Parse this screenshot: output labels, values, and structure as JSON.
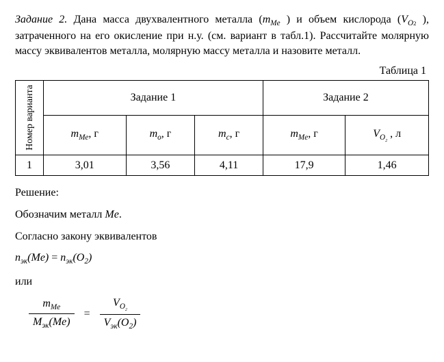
{
  "problem": {
    "label_italic": "Задание 2.",
    "text_line1a": " Дана масса двухвалентного металла (",
    "sym_mMe": "m",
    "sym_Me": "Me",
    "text_line1b": " ) и объем кислорода (",
    "sym_V": "V",
    "sym_O2": "O",
    "sym_2": "2",
    "text_line1c": " ), затраченного на его окисление при н.у. (см. вариант в табл.1). Рассчитайте молярную массу эквивалентов металла, молярную массу металла и назовите металл."
  },
  "tableCaption": "Таблица 1",
  "table": {
    "rowHeader": "Номер варианта",
    "groupHeaders": [
      "Задание 1",
      "Задание 2"
    ],
    "columns": {
      "c1a": "m",
      "c1a_sub": "Me",
      "c1a_unit": ", г",
      "c1b": "m",
      "c1b_sub": "o",
      "c1b_unit": ", г",
      "c1c": "m",
      "c1c_sub": "c",
      "c1c_unit": ", г",
      "c2a": "m",
      "c2a_sub": "Me",
      "c2a_unit": ", г",
      "c2b": "V",
      "c2b_sub": "O",
      "c2b_subsub": "2",
      "c2b_unit": " , л"
    },
    "rows": [
      {
        "variant": "1",
        "v1": "3,01",
        "v2": "3,56",
        "v3": "4,11",
        "v4": "17,9",
        "v5": "1,46"
      }
    ]
  },
  "solution": {
    "heading": "Решение:",
    "line1a": "Обозначим металл ",
    "line1b": "Me",
    "line1c": ".",
    "line2": "Согласно закону эквивалентов",
    "eq1": {
      "lhs_n": "n",
      "lhs_sub": "эк",
      "lhs_arg": "(Me)",
      "eq": " = ",
      "rhs_n": "n",
      "rhs_sub": "эк",
      "rhs_arg": "(O",
      "rhs_arg2": "2",
      "rhs_arg3": ")"
    },
    "or": "или",
    "eq2": {
      "left_num_m": "m",
      "left_num_sub": "Me",
      "left_den_M": "M",
      "left_den_sub": "эк",
      "left_den_arg": "(Me)",
      "eq": "=",
      "right_num_V": "V",
      "right_num_sub": "O",
      "right_num_subsub": "2",
      "right_den_V": "V",
      "right_den_sub": "эк",
      "right_den_arg": "(O",
      "right_den_arg2": "2",
      "right_den_arg3": ")"
    }
  }
}
